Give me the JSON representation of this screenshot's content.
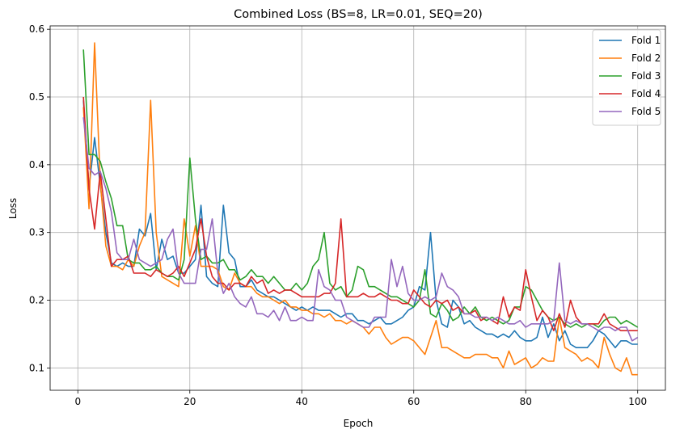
{
  "chart_data": {
    "type": "line",
    "title": "Combined Loss (BS=8, LR=0.01, SEQ=20)",
    "xlabel": "Epoch",
    "ylabel": "Loss",
    "xlim": [
      -4.95,
      104.95
    ],
    "ylim": [
      0.067,
      0.605
    ],
    "xticks": [
      0,
      20,
      40,
      60,
      80,
      100
    ],
    "yticks": [
      0.1,
      0.2,
      0.3,
      0.4,
      0.5,
      0.6
    ],
    "grid": true,
    "legend_position": "top-right",
    "series": [
      {
        "name": "Fold 1",
        "color": "#1f77b4",
        "values": [
          0.495,
          0.365,
          0.44,
          0.37,
          0.3,
          0.255,
          0.25,
          0.255,
          0.25,
          0.25,
          0.305,
          0.295,
          0.328,
          0.245,
          0.29,
          0.26,
          0.265,
          0.24,
          0.24,
          0.25,
          0.26,
          0.34,
          0.235,
          0.225,
          0.22,
          0.34,
          0.27,
          0.26,
          0.22,
          0.22,
          0.23,
          0.215,
          0.21,
          0.205,
          0.205,
          0.2,
          0.195,
          0.19,
          0.185,
          0.19,
          0.185,
          0.19,
          0.185,
          0.185,
          0.185,
          0.18,
          0.175,
          0.18,
          0.18,
          0.17,
          0.17,
          0.165,
          0.17,
          0.175,
          0.165,
          0.165,
          0.17,
          0.175,
          0.185,
          0.19,
          0.22,
          0.215,
          0.3,
          0.2,
          0.165,
          0.16,
          0.2,
          0.19,
          0.165,
          0.17,
          0.16,
          0.155,
          0.15,
          0.15,
          0.145,
          0.15,
          0.145,
          0.155,
          0.145,
          0.14,
          0.14,
          0.145,
          0.175,
          0.145,
          0.165,
          0.14,
          0.155,
          0.135,
          0.13,
          0.13,
          0.13,
          0.14,
          0.155,
          0.15,
          0.14,
          0.13,
          0.14,
          0.14,
          0.135,
          0.135
        ]
      },
      {
        "name": "Fold 2",
        "color": "#ff7f0e",
        "values": [
          0.485,
          0.335,
          0.58,
          0.375,
          0.28,
          0.25,
          0.25,
          0.245,
          0.26,
          0.25,
          0.28,
          0.3,
          0.495,
          0.3,
          0.235,
          0.23,
          0.225,
          0.22,
          0.32,
          0.265,
          0.31,
          0.25,
          0.25,
          0.25,
          0.245,
          0.22,
          0.215,
          0.24,
          0.225,
          0.22,
          0.22,
          0.21,
          0.205,
          0.205,
          0.2,
          0.195,
          0.2,
          0.19,
          0.19,
          0.185,
          0.185,
          0.18,
          0.18,
          0.175,
          0.18,
          0.17,
          0.17,
          0.165,
          0.17,
          0.165,
          0.16,
          0.15,
          0.16,
          0.16,
          0.145,
          0.135,
          0.14,
          0.145,
          0.145,
          0.14,
          0.13,
          0.12,
          0.145,
          0.17,
          0.13,
          0.13,
          0.125,
          0.12,
          0.115,
          0.115,
          0.12,
          0.12,
          0.12,
          0.115,
          0.115,
          0.1,
          0.125,
          0.105,
          0.11,
          0.115,
          0.1,
          0.105,
          0.115,
          0.11,
          0.11,
          0.175,
          0.13,
          0.125,
          0.12,
          0.11,
          0.115,
          0.11,
          0.1,
          0.145,
          0.12,
          0.1,
          0.095,
          0.115,
          0.09,
          0.09
        ]
      },
      {
        "name": "Fold 3",
        "color": "#2ca02c",
        "values": [
          0.57,
          0.415,
          0.415,
          0.405,
          0.375,
          0.35,
          0.31,
          0.31,
          0.26,
          0.255,
          0.255,
          0.245,
          0.245,
          0.25,
          0.24,
          0.235,
          0.235,
          0.23,
          0.26,
          0.41,
          0.32,
          0.26,
          0.265,
          0.255,
          0.255,
          0.26,
          0.245,
          0.245,
          0.23,
          0.235,
          0.245,
          0.235,
          0.235,
          0.225,
          0.235,
          0.225,
          0.215,
          0.215,
          0.225,
          0.215,
          0.225,
          0.25,
          0.26,
          0.3,
          0.225,
          0.215,
          0.22,
          0.205,
          0.215,
          0.25,
          0.245,
          0.22,
          0.22,
          0.215,
          0.21,
          0.205,
          0.205,
          0.2,
          0.195,
          0.19,
          0.2,
          0.245,
          0.18,
          0.175,
          0.195,
          0.185,
          0.17,
          0.175,
          0.19,
          0.18,
          0.19,
          0.175,
          0.17,
          0.175,
          0.17,
          0.165,
          0.17,
          0.19,
          0.19,
          0.22,
          0.215,
          0.2,
          0.185,
          0.175,
          0.17,
          0.175,
          0.165,
          0.16,
          0.165,
          0.16,
          0.165,
          0.165,
          0.16,
          0.17,
          0.175,
          0.175,
          0.165,
          0.17,
          0.165,
          0.16
        ]
      },
      {
        "name": "Fold 4",
        "color": "#d62728",
        "values": [
          0.5,
          0.365,
          0.305,
          0.39,
          0.32,
          0.25,
          0.26,
          0.26,
          0.265,
          0.24,
          0.24,
          0.24,
          0.235,
          0.245,
          0.24,
          0.235,
          0.24,
          0.25,
          0.235,
          0.255,
          0.275,
          0.32,
          0.265,
          0.235,
          0.225,
          0.225,
          0.215,
          0.225,
          0.225,
          0.22,
          0.235,
          0.225,
          0.23,
          0.21,
          0.215,
          0.21,
          0.215,
          0.215,
          0.21,
          0.205,
          0.205,
          0.205,
          0.205,
          0.21,
          0.21,
          0.225,
          0.32,
          0.205,
          0.205,
          0.205,
          0.21,
          0.205,
          0.205,
          0.21,
          0.205,
          0.2,
          0.2,
          0.195,
          0.195,
          0.215,
          0.205,
          0.195,
          0.19,
          0.2,
          0.195,
          0.2,
          0.185,
          0.19,
          0.18,
          0.18,
          0.185,
          0.17,
          0.175,
          0.17,
          0.165,
          0.205,
          0.175,
          0.19,
          0.185,
          0.245,
          0.205,
          0.17,
          0.185,
          0.175,
          0.155,
          0.18,
          0.16,
          0.2,
          0.175,
          0.165,
          0.165,
          0.165,
          0.165,
          0.18,
          0.165,
          0.16,
          0.155,
          0.155,
          0.155,
          0.155
        ]
      },
      {
        "name": "Fold 5",
        "color": "#9467bd",
        "values": [
          0.47,
          0.395,
          0.385,
          0.39,
          0.365,
          0.33,
          0.27,
          0.26,
          0.26,
          0.29,
          0.26,
          0.255,
          0.25,
          0.255,
          0.26,
          0.29,
          0.305,
          0.24,
          0.225,
          0.225,
          0.225,
          0.275,
          0.275,
          0.32,
          0.24,
          0.21,
          0.225,
          0.205,
          0.195,
          0.19,
          0.205,
          0.18,
          0.18,
          0.175,
          0.185,
          0.17,
          0.19,
          0.17,
          0.17,
          0.175,
          0.17,
          0.17,
          0.245,
          0.22,
          0.215,
          0.2,
          0.2,
          0.175,
          0.17,
          0.165,
          0.16,
          0.16,
          0.175,
          0.175,
          0.175,
          0.26,
          0.22,
          0.25,
          0.21,
          0.2,
          0.2,
          0.205,
          0.2,
          0.205,
          0.24,
          0.22,
          0.215,
          0.205,
          0.18,
          0.18,
          0.175,
          0.175,
          0.175,
          0.17,
          0.175,
          0.17,
          0.165,
          0.165,
          0.17,
          0.16,
          0.165,
          0.165,
          0.165,
          0.165,
          0.17,
          0.255,
          0.17,
          0.165,
          0.17,
          0.165,
          0.165,
          0.16,
          0.155,
          0.16,
          0.16,
          0.155,
          0.16,
          0.16,
          0.14,
          0.145
        ]
      }
    ]
  }
}
